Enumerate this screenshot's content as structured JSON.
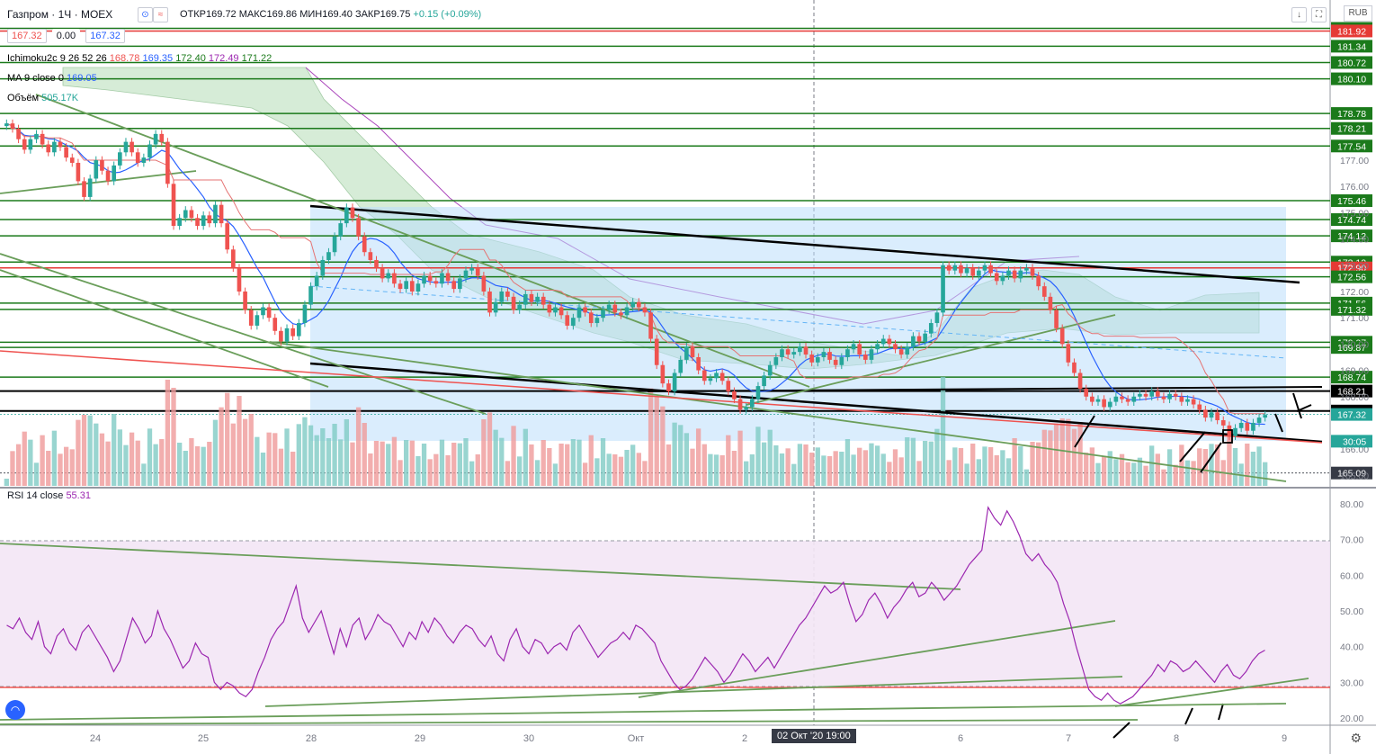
{
  "header": {
    "symbol": "Газпром · 1Ч · MOEX",
    "open_label": "ОТКР",
    "open": "169.72",
    "high_label": "МАКС",
    "high": "169.86",
    "low_label": "МИН",
    "low": "169.40",
    "close_label": "ЗАКР",
    "close": "169.75",
    "change": "+0.15 (+0.09%)",
    "bid": "167.32",
    "spread": "0.00",
    "ask": "167.32",
    "currency": "RUB"
  },
  "indicators": {
    "ichimoku_label": "Ichimoku2c 9 26 52 26",
    "ichimoku_values": [
      "168.78",
      "169.35",
      "172.40",
      "172.49",
      "171.22"
    ],
    "ma_label": "MA 9 close 0",
    "ma_value": "169.05",
    "volume_label": "Объём",
    "volume_value": "505.17K",
    "rsi_label": "RSI 14 close",
    "rsi_value": "55.31"
  },
  "crosshair_time": "02 Окт '20   19:00",
  "countdown": "30:05",
  "colors": {
    "up": "#26a69a",
    "down": "#ef5350",
    "ma": "#2962ff",
    "rsi": "#9c27b0",
    "green_level": "#1b7a1b",
    "red_level": "#e53935",
    "channel_fill": "#bbdefb"
  },
  "chart_data": [
    {
      "type": "candlestick",
      "x_ticks": [
        "24",
        "25",
        "28",
        "29",
        "30",
        "Окт",
        "2",
        "6",
        "7",
        "8",
        "9"
      ],
      "y_ticks": [
        177.0,
        176.0,
        175.0,
        174.0,
        173.0,
        172.0,
        171.0,
        170.0,
        169.0,
        168.0,
        166.0,
        165.0
      ],
      "ylim": [
        164.6,
        183.1
      ],
      "price_levels_labeled": [
        {
          "value": "182.02",
          "kind": "green"
        },
        {
          "value": "181.92",
          "kind": "red"
        },
        {
          "value": "181.34",
          "kind": "green"
        },
        {
          "value": "180.72",
          "kind": "green"
        },
        {
          "value": "180.10",
          "kind": "green"
        },
        {
          "value": "178.78",
          "kind": "green"
        },
        {
          "value": "178.21",
          "kind": "green"
        },
        {
          "value": "177.54",
          "kind": "green"
        },
        {
          "value": "175.46",
          "kind": "green"
        },
        {
          "value": "174.74",
          "kind": "green"
        },
        {
          "value": "174.12",
          "kind": "green"
        },
        {
          "value": "173.12",
          "kind": "green"
        },
        {
          "value": "172.90",
          "kind": "red"
        },
        {
          "value": "172.56",
          "kind": "green"
        },
        {
          "value": "171.56",
          "kind": "green"
        },
        {
          "value": "171.32",
          "kind": "green"
        },
        {
          "value": "170.07",
          "kind": "green"
        },
        {
          "value": "169.87",
          "kind": "green"
        },
        {
          "value": "168.74",
          "kind": "green"
        },
        {
          "value": "168.21",
          "kind": "black"
        },
        {
          "value": "167.45",
          "kind": "black"
        },
        {
          "value": "167.32",
          "kind": "price"
        },
        {
          "value": "165.09",
          "kind": "dark"
        }
      ],
      "closes": [
        178.4,
        178.2,
        177.8,
        177.4,
        177.8,
        178.0,
        177.6,
        177.3,
        177.7,
        177.5,
        177.1,
        176.9,
        176.2,
        175.6,
        176.3,
        177.0,
        176.6,
        176.2,
        176.8,
        177.3,
        177.7,
        177.3,
        176.9,
        177.1,
        177.6,
        178.0,
        177.7,
        176.1,
        174.5,
        174.8,
        175.1,
        174.8,
        174.5,
        174.9,
        174.6,
        175.3,
        174.6,
        173.6,
        172.9,
        172.0,
        171.3,
        170.7,
        171.1,
        171.4,
        171.0,
        170.5,
        170.1,
        170.6,
        170.3,
        170.8,
        171.5,
        172.2,
        172.6,
        173.2,
        173.5,
        174.1,
        174.6,
        175.2,
        174.8,
        174.1,
        173.5,
        173.2,
        172.9,
        172.5,
        172.7,
        172.3,
        172.1,
        172.4,
        172.0,
        172.3,
        172.6,
        172.4,
        172.3,
        172.7,
        172.4,
        172.1,
        172.5,
        172.8,
        172.9,
        172.6,
        172.0,
        171.2,
        171.6,
        172.0,
        171.8,
        171.3,
        171.5,
        171.9,
        171.6,
        171.8,
        171.5,
        171.2,
        171.4,
        171.1,
        170.7,
        171.0,
        171.4,
        171.2,
        170.8,
        171.0,
        171.3,
        171.5,
        171.2,
        171.1,
        171.4,
        171.6,
        171.4,
        171.2,
        170.2,
        169.2,
        168.5,
        168.2,
        168.9,
        169.4,
        169.9,
        169.5,
        169.0,
        168.6,
        168.7,
        168.9,
        168.6,
        168.2,
        167.9,
        167.5,
        167.6,
        167.9,
        168.4,
        168.8,
        169.2,
        169.5,
        169.8,
        169.6,
        169.7,
        169.9,
        169.6,
        169.3,
        169.5,
        169.7,
        169.4,
        169.2,
        169.5,
        169.8,
        170.0,
        169.6,
        169.4,
        169.8,
        170.0,
        170.2,
        170.0,
        169.8,
        169.6,
        169.9,
        170.3,
        170.1,
        170.4,
        170.8,
        171.2,
        173.0,
        172.8,
        173.0,
        172.7,
        172.9,
        172.6,
        172.8,
        173.0,
        172.7,
        172.4,
        172.6,
        172.8,
        172.5,
        172.8,
        172.9,
        172.6,
        172.2,
        171.8,
        171.3,
        170.6,
        170.0,
        169.3,
        168.9,
        168.3,
        168.0,
        167.8,
        167.9,
        167.6,
        167.8,
        168.0,
        167.9,
        167.8,
        168.0,
        168.1,
        168.0,
        168.2,
        168.0,
        167.9,
        168.1,
        168.0,
        167.8,
        167.9,
        167.7,
        167.5,
        167.2,
        167.4,
        167.1,
        166.9,
        166.5,
        166.8,
        167.0,
        166.7,
        167.0,
        167.2,
        167.3
      ]
    },
    {
      "type": "line",
      "title": "RSI 14 close",
      "y_ticks": [
        80.0,
        70.0,
        60.0,
        50.0,
        40.0,
        30.0,
        20.0
      ],
      "ylim": [
        18,
        84
      ],
      "overbought": 70,
      "oversold": 30,
      "values": [
        46,
        45,
        48,
        44,
        42,
        47,
        40,
        38,
        43,
        45,
        41,
        39,
        44,
        46,
        43,
        40,
        37,
        33,
        36,
        42,
        48,
        45,
        41,
        43,
        50,
        45,
        42,
        38,
        34,
        36,
        41,
        38,
        37,
        30,
        28,
        30,
        29,
        27,
        26,
        28,
        33,
        37,
        42,
        45,
        47,
        52,
        57,
        48,
        44,
        47,
        50,
        44,
        38,
        45,
        40,
        46,
        48,
        42,
        45,
        49,
        47,
        46,
        43,
        40,
        44,
        42,
        47,
        44,
        48,
        46,
        43,
        41,
        44,
        46,
        45,
        42,
        40,
        43,
        38,
        36,
        42,
        45,
        40,
        38,
        42,
        41,
        38,
        40,
        41,
        39,
        44,
        46,
        43,
        40,
        37,
        39,
        41,
        42,
        44,
        42,
        46,
        45,
        43,
        41,
        36,
        33,
        30,
        28,
        29,
        31,
        34,
        37,
        35,
        33,
        30,
        32,
        35,
        38,
        36,
        33,
        35,
        37,
        34,
        37,
        40,
        43,
        46,
        48,
        51,
        54,
        57,
        55,
        56,
        58,
        52,
        47,
        49,
        53,
        55,
        52,
        48,
        51,
        53,
        56,
        58,
        54,
        55,
        58,
        56,
        53,
        55,
        57,
        60,
        63,
        65,
        67,
        79,
        76,
        74,
        78,
        75,
        71,
        66,
        64,
        66,
        63,
        61,
        58,
        52,
        47,
        40,
        34,
        28,
        26,
        25,
        27,
        25,
        24,
        25,
        26,
        28,
        30,
        32,
        35,
        33,
        36,
        35,
        33,
        34,
        36,
        34,
        32,
        30,
        33,
        35,
        32,
        31,
        33,
        36,
        38,
        39
      ]
    }
  ]
}
